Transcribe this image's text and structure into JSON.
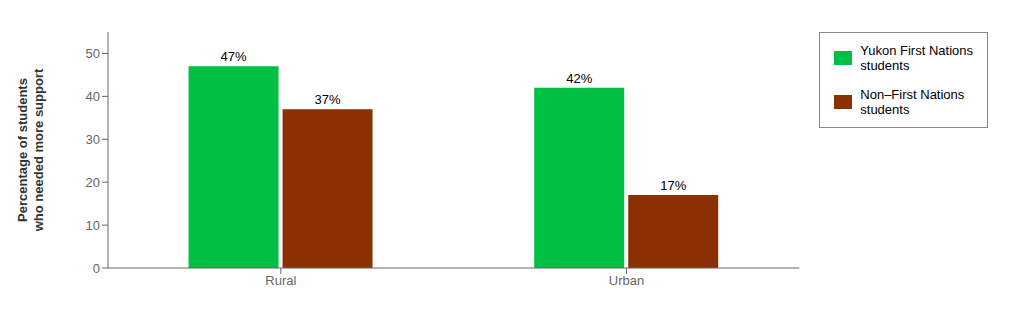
{
  "chart_data": {
    "type": "bar",
    "categories": [
      "Rural",
      "Urban"
    ],
    "series": [
      {
        "name": "Yukon First Nations\nstudents",
        "color": "#00C044",
        "values": [
          47,
          42
        ],
        "value_labels": [
          "47%",
          "42%"
        ]
      },
      {
        "name": "Non–First Nations\nstudents",
        "color": "#8B3000",
        "values": [
          37,
          17
        ],
        "value_labels": [
          "37%",
          "17%"
        ]
      }
    ],
    "ylabel": "Percentage of students\nwho needed more support",
    "ylim": [
      0,
      55
    ],
    "yticks": [
      0,
      10,
      20,
      30,
      40,
      50
    ],
    "grid": false,
    "legend": "right",
    "data_labels": true
  }
}
